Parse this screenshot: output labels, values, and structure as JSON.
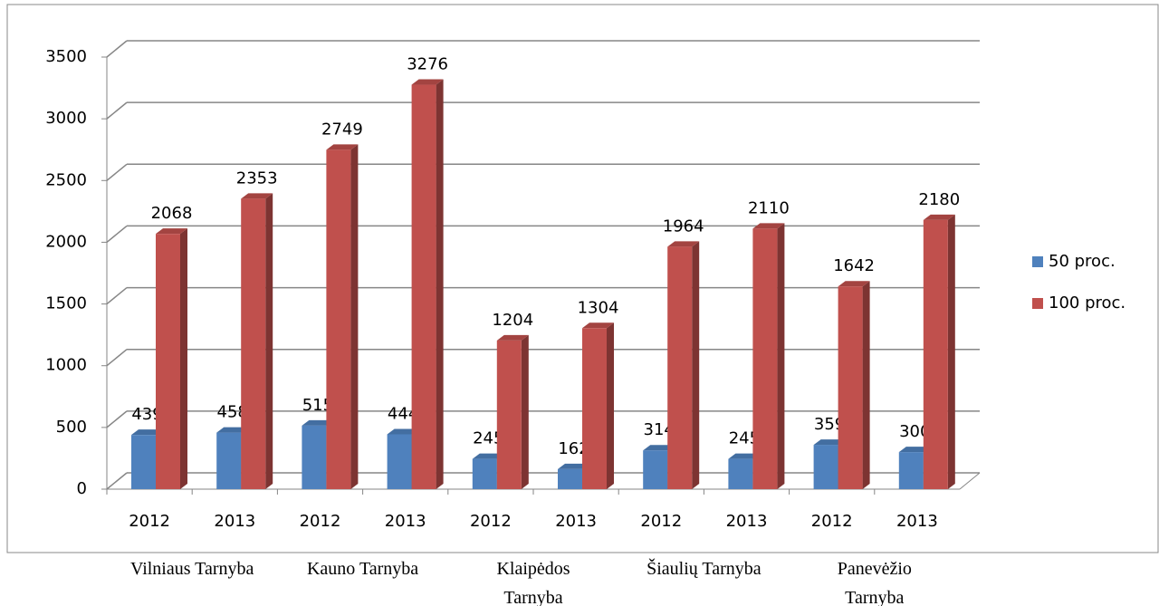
{
  "chart_data": {
    "type": "bar3d",
    "categories": [
      "2012",
      "2013",
      "2012",
      "2013",
      "2012",
      "2013",
      "2012",
      "2013",
      "2012",
      "2013"
    ],
    "groups": [
      "Vilniaus Tarnyba",
      "Kauno Tarnyba",
      "Klaipėdos Tarnyba",
      "Šiaulių Tarnyba",
      "Panevėžio Tarnyba"
    ],
    "series": [
      {
        "name": "50 proc.",
        "color": "#4f81bd",
        "values": [
          439,
          458,
          515,
          444,
          245,
          162,
          314,
          245,
          359,
          300
        ]
      },
      {
        "name": "100 proc.",
        "color": "#c0504d",
        "values": [
          2068,
          2353,
          2749,
          3276,
          1204,
          1304,
          1964,
          2110,
          1642,
          2180
        ]
      }
    ],
    "ylim": [
      0,
      3500
    ],
    "yticks": [
      0,
      500,
      1000,
      1500,
      2000,
      2500,
      3000,
      3500
    ],
    "grid": true,
    "legend": "right"
  }
}
